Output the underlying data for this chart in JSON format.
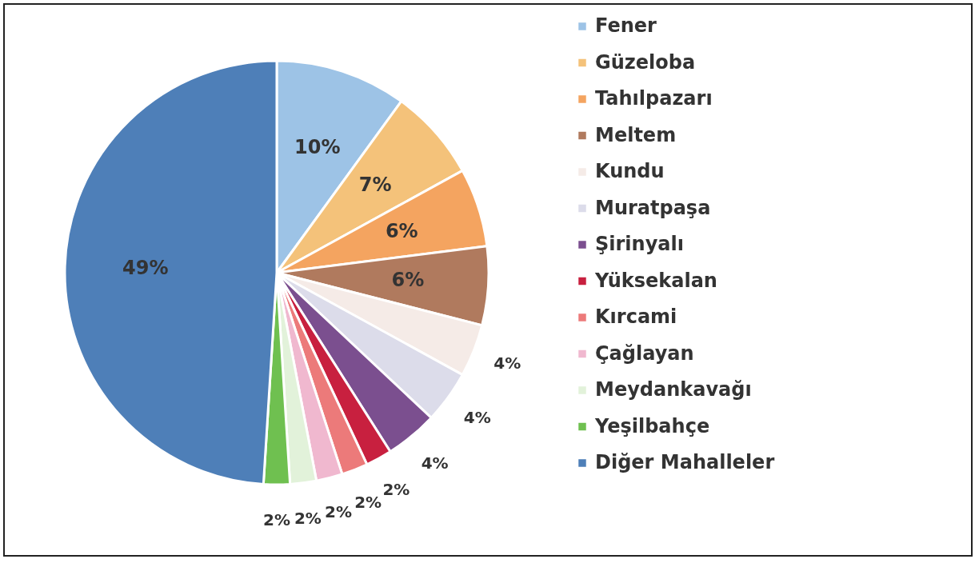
{
  "chart_data": {
    "type": "pie",
    "categories": [
      "Fener",
      "Güzeloba",
      "Tahılpazarı",
      "Meltem",
      "Kundu",
      "Muratpaşa",
      "Şirinyalı",
      "Yüksekalan",
      "Kırcami",
      "Çağlayan",
      "Meydankavağı",
      "Yeşilbahçe",
      "Diğer Mahalleler"
    ],
    "values": [
      10,
      7,
      6,
      6,
      4,
      4,
      4,
      2,
      2,
      2,
      2,
      2,
      49
    ],
    "value_labels": [
      "10%",
      "7%",
      "6%",
      "6%",
      "4%",
      "4%",
      "4%",
      "2%",
      "2%",
      "2%",
      "2%",
      "2%",
      "49%"
    ],
    "colors": [
      "#9dc3e6",
      "#f4c27a",
      "#f4a460",
      "#b07a5e",
      "#f5ebe7",
      "#dcdcea",
      "#7b4f8f",
      "#c8203f",
      "#ec7a7a",
      "#f0b8cf",
      "#e2f2da",
      "#6fc050",
      "#4e7fb8"
    ],
    "legend": "right"
  }
}
